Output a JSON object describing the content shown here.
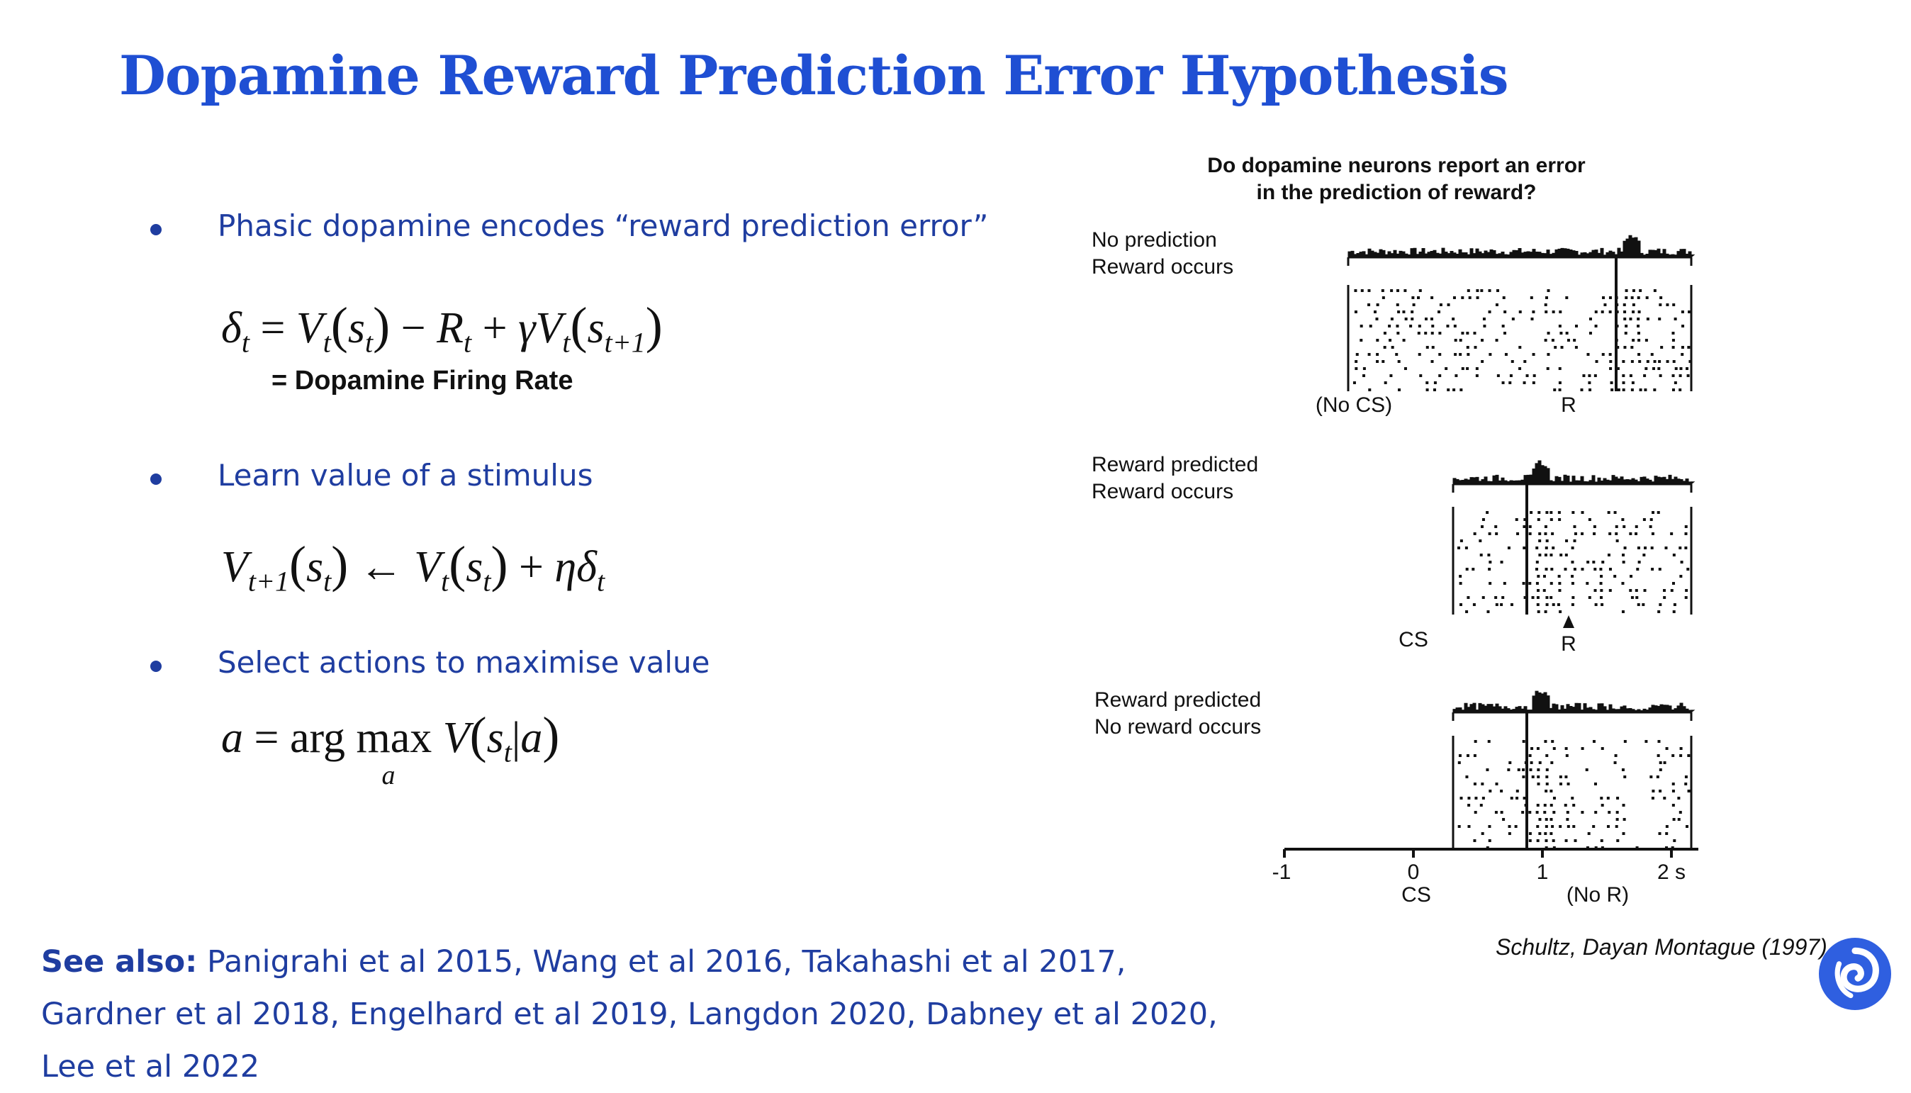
{
  "slide": {
    "title": "Dopamine Reward Prediction Error Hypothesis",
    "bullets": [
      "Phasic dopamine encodes “reward prediction error”",
      "Learn value of a stimulus",
      "Select actions to maximise value"
    ],
    "equation_label": "= Dopamine Firing Rate",
    "see_also_label": "See also:",
    "see_also_text": " Panigrahi et al 2015, Wang et al 2016, Takahashi et al 2017, Gardner et al 2018, Engelhard et al 2019, Langdon 2020, Dabney et al 2020, Lee et al 2022",
    "citation": "Schultz, Dayan Montague (1997)"
  },
  "figure": {
    "title_line1": "Do dopamine neurons report an error",
    "title_line2": "in the prediction of reward?",
    "panels": [
      {
        "label1": "No prediction",
        "label2": "Reward occurs",
        "left_marker": "(No CS)",
        "right_marker": "R"
      },
      {
        "label1": "Reward predicted",
        "label2": "Reward occurs",
        "left_marker": "CS",
        "right_marker": "R"
      },
      {
        "label1": "Reward predicted",
        "label2": "No reward occurs"
      }
    ],
    "axis_ticks": [
      "-1",
      "0",
      "1",
      "2 s"
    ],
    "axis_cs": "CS",
    "axis_no_r": "(No R)"
  },
  "colors": {
    "title": "#1f4fd3",
    "text": "#1f3da0",
    "logo": "#2f5fe0"
  }
}
